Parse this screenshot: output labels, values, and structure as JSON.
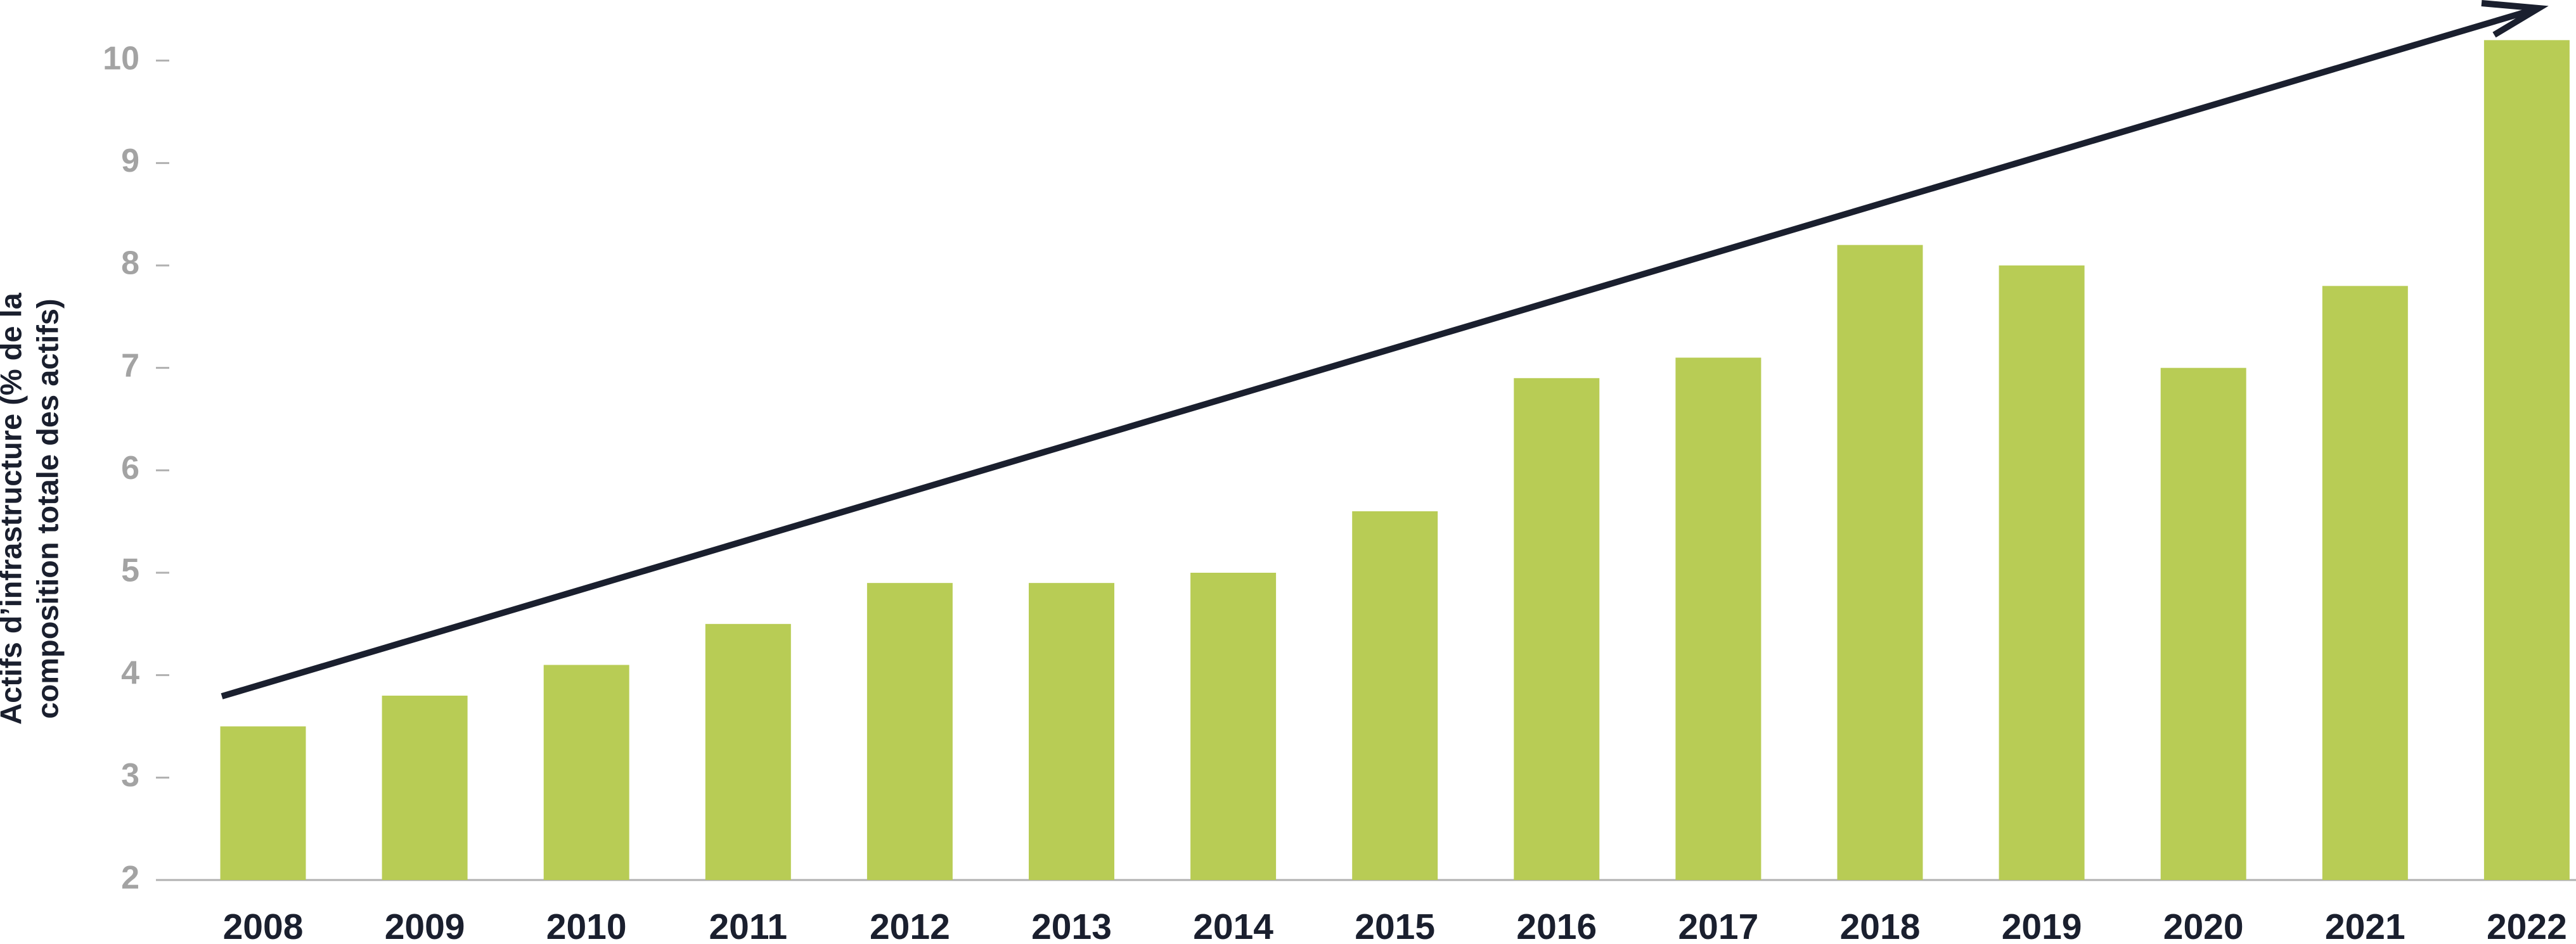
{
  "chart_data": {
    "type": "bar",
    "y_label": [
      "Actifs d’infrastructure (% de la",
      "composition totale des actifs)"
    ],
    "categories": [
      "2008",
      "2009",
      "2010",
      "2011",
      "2012",
      "2013",
      "2014",
      "2015",
      "2016",
      "2017",
      "2018",
      "2019",
      "2020",
      "2021",
      "2022"
    ],
    "values": [
      3.5,
      3.8,
      4.1,
      4.5,
      4.9,
      4.9,
      5.0,
      5.6,
      6.9,
      7.1,
      8.2,
      8.0,
      7.0,
      7.8,
      10.2
    ],
    "color": "#b8cc55",
    "ylim": [
      2,
      10.4
    ],
    "yticks": [
      2,
      3,
      4,
      5,
      6,
      7,
      8,
      9,
      10
    ]
  }
}
